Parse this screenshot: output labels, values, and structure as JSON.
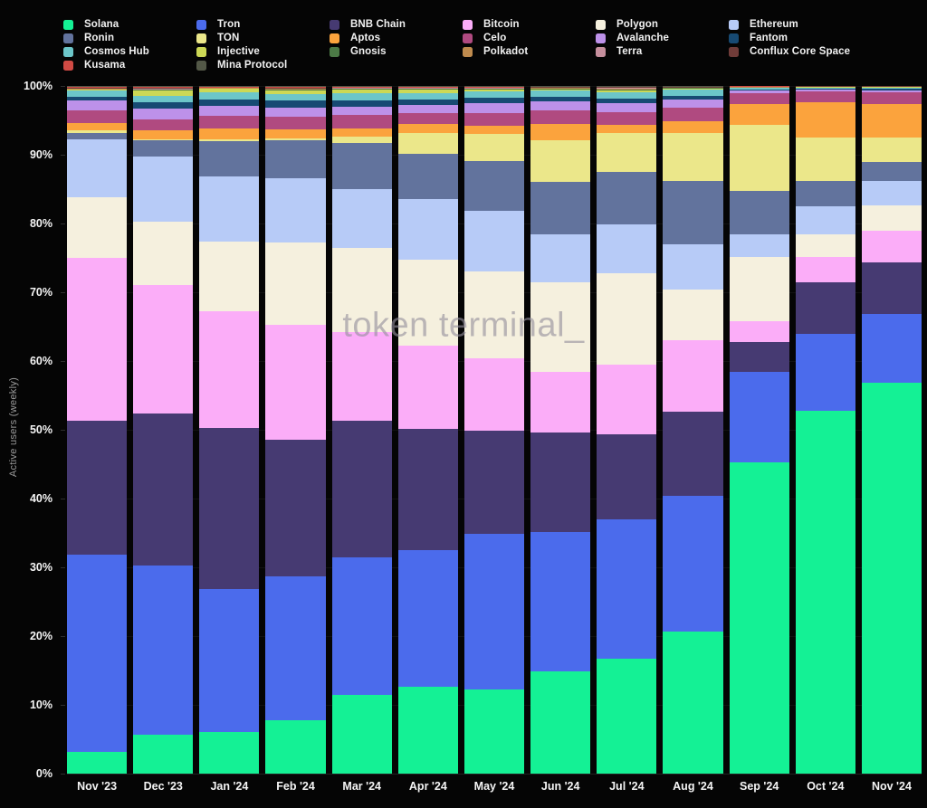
{
  "ylabel": "Active users (weekly)",
  "watermark": "token terminal_",
  "y_ticks": [
    "100%",
    "90%",
    "80%",
    "70%",
    "60%",
    "50%",
    "40%",
    "30%",
    "20%",
    "10%",
    "0%"
  ],
  "chart_data": {
    "type": "bar",
    "stacked": true,
    "normalized": "percent",
    "title": "",
    "xlabel": "",
    "ylabel": "Active users (weekly)",
    "ylim": [
      0,
      100
    ],
    "grid": "faint-horizontal",
    "legend_position": "top",
    "watermark": "token terminal_",
    "x": [
      "Nov '23",
      "Dec '23",
      "Jan '24",
      "Feb '24",
      "Mar '24",
      "Apr '24",
      "May '24",
      "Jun '24",
      "Jul '24",
      "Aug '24",
      "Sep '24",
      "Oct '24",
      "Nov '24"
    ],
    "series": [
      {
        "name": "Solana",
        "color": "#14f195",
        "values": [
          3.2,
          5.7,
          6.0,
          7.7,
          11.5,
          12.6,
          12.3,
          14.9,
          16.7,
          20.7,
          45.3,
          52.7,
          56.9
        ]
      },
      {
        "name": "Tron",
        "color": "#4b6bec",
        "values": [
          28.7,
          24.6,
          20.9,
          21.0,
          19.9,
          19.9,
          22.6,
          20.3,
          20.3,
          19.7,
          13.1,
          11.3,
          10.0
        ]
      },
      {
        "name": "BNB Chain",
        "color": "#463a72",
        "values": [
          19.4,
          22.1,
          23.4,
          19.8,
          19.9,
          17.6,
          15.0,
          14.4,
          12.4,
          12.3,
          4.4,
          7.5,
          7.4
        ]
      },
      {
        "name": "Bitcoin",
        "color": "#fbadf8",
        "values": [
          23.7,
          18.6,
          16.9,
          16.8,
          12.9,
          12.2,
          10.5,
          8.8,
          10.1,
          10.3,
          3.0,
          3.7,
          4.7
        ]
      },
      {
        "name": "Polygon",
        "color": "#f5f0de",
        "values": [
          8.8,
          9.3,
          10.2,
          12.0,
          12.3,
          12.5,
          12.6,
          13.1,
          13.3,
          7.4,
          9.4,
          3.2,
          3.7
        ]
      },
      {
        "name": "Ethereum",
        "color": "#b7cbf7",
        "values": [
          8.5,
          9.4,
          9.5,
          9.3,
          8.5,
          8.8,
          8.8,
          6.9,
          7.1,
          6.6,
          3.2,
          4.1,
          3.5
        ]
      },
      {
        "name": "Ronin",
        "color": "#62739d",
        "values": [
          0.9,
          2.4,
          5.1,
          5.5,
          6.7,
          6.6,
          7.3,
          7.6,
          7.6,
          9.2,
          6.3,
          3.7,
          2.7
        ]
      },
      {
        "name": "TON",
        "color": "#ebe78a",
        "values": [
          0.3,
          0.2,
          0.3,
          0.3,
          0.9,
          3.0,
          3.9,
          6.1,
          5.7,
          7.0,
          9.6,
          6.3,
          3.6
        ]
      },
      {
        "name": "Aptos",
        "color": "#fba33d",
        "values": [
          1.1,
          1.3,
          1.5,
          1.3,
          1.2,
          1.3,
          1.2,
          2.4,
          1.1,
          1.7,
          3.1,
          5.1,
          4.9
        ]
      },
      {
        "name": "Celo",
        "color": "#b04a80",
        "values": [
          1.9,
          1.6,
          1.9,
          1.9,
          2.0,
          1.5,
          1.9,
          2.0,
          1.9,
          2.0,
          1.5,
          1.6,
          1.7
        ]
      },
      {
        "name": "Avalanche",
        "color": "#bd91e9",
        "values": [
          1.4,
          1.5,
          1.4,
          1.3,
          1.2,
          1.3,
          1.4,
          1.3,
          1.3,
          1.1,
          0.5,
          0.3,
          0.3
        ]
      },
      {
        "name": "Fantom",
        "color": "#174a73",
        "values": [
          0.6,
          1.0,
          1.0,
          1.0,
          0.9,
          0.8,
          0.8,
          0.6,
          0.7,
          0.6,
          0.1,
          0.1,
          0.2
        ]
      },
      {
        "name": "Cosmos Hub",
        "color": "#6cc6c9",
        "values": [
          0.8,
          0.9,
          1.0,
          0.9,
          1.0,
          0.9,
          0.9,
          0.9,
          0.9,
          0.9,
          0.2,
          0.2,
          0.2
        ]
      },
      {
        "name": "Injective",
        "color": "#ccd855",
        "values": [
          0.15,
          0.8,
          0.5,
          0.6,
          0.6,
          0.5,
          0.3,
          0.25,
          0.3,
          0.1,
          0.05,
          0.05,
          0.05
        ]
      },
      {
        "name": "Gnosis",
        "color": "#4c7a46",
        "values": [
          0.1,
          0.1,
          0.05,
          0.1,
          0.1,
          0.1,
          0.1,
          0.1,
          0.15,
          0.1,
          0.05,
          0.03,
          0.03
        ]
      },
      {
        "name": "Polkadot",
        "color": "#bf8b4e",
        "values": [
          0.05,
          0.05,
          0.05,
          0.1,
          0.05,
          0.05,
          0.05,
          0.05,
          0.1,
          0.05,
          0.05,
          0.02,
          0.02
        ]
      },
      {
        "name": "Terra",
        "color": "#c68f9d",
        "values": [
          0.05,
          0.05,
          0.05,
          0.05,
          0.05,
          0.05,
          0.05,
          0.05,
          0.1,
          0.05,
          0.05,
          0.03,
          0.03
        ]
      },
      {
        "name": "Conflux Core Space",
        "color": "#703c39",
        "values": [
          0.1,
          0.1,
          0.05,
          0.1,
          0.1,
          0.1,
          0.1,
          0.1,
          0.1,
          0.1,
          0.05,
          0.03,
          0.03
        ]
      },
      {
        "name": "Kusama",
        "color": "#d04a44",
        "values": [
          0.15,
          0.15,
          0.1,
          0.15,
          0.1,
          0.1,
          0.1,
          0.1,
          0.1,
          0.05,
          0.03,
          0.02,
          0.02
        ]
      },
      {
        "name": "Mina Protocol",
        "color": "#535847",
        "values": [
          0.1,
          0.15,
          0.1,
          0.1,
          0.1,
          0.1,
          0.1,
          0.05,
          0.05,
          0.05,
          0.02,
          0.02,
          0.02
        ]
      }
    ]
  }
}
